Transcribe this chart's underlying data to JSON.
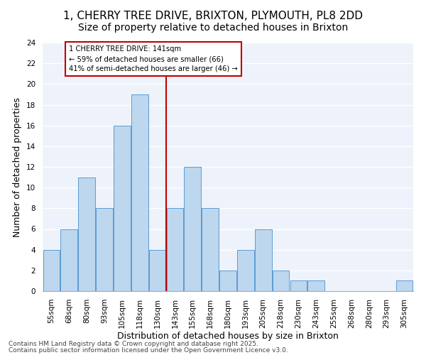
{
  "title1": "1, CHERRY TREE DRIVE, BRIXTON, PLYMOUTH, PL8 2DD",
  "title2": "Size of property relative to detached houses in Brixton",
  "xlabel": "Distribution of detached houses by size in Brixton",
  "ylabel": "Number of detached properties",
  "categories": [
    "55sqm",
    "68sqm",
    "80sqm",
    "93sqm",
    "105sqm",
    "118sqm",
    "130sqm",
    "143sqm",
    "155sqm",
    "168sqm",
    "180sqm",
    "193sqm",
    "205sqm",
    "218sqm",
    "230sqm",
    "243sqm",
    "255sqm",
    "268sqm",
    "280sqm",
    "293sqm",
    "305sqm"
  ],
  "values": [
    4,
    6,
    11,
    8,
    16,
    19,
    4,
    8,
    12,
    8,
    2,
    4,
    6,
    2,
    1,
    1,
    0,
    0,
    0,
    0,
    1
  ],
  "bar_color": "#bdd7ee",
  "bar_edge_color": "#5b9bd5",
  "background_color": "#eef3fb",
  "grid_color": "#ffffff",
  "vline_x": 6.5,
  "vline_color": "#c00000",
  "annotation_text": "1 CHERRY TREE DRIVE: 141sqm\n← 59% of detached houses are smaller (66)\n41% of semi-detached houses are larger (46) →",
  "annotation_box_color": "#c00000",
  "ylim": [
    0,
    24
  ],
  "yticks": [
    0,
    2,
    4,
    6,
    8,
    10,
    12,
    14,
    16,
    18,
    20,
    22,
    24
  ],
  "footer1": "Contains HM Land Registry data © Crown copyright and database right 2025.",
  "footer2": "Contains public sector information licensed under the Open Government Licence v3.0.",
  "title_fontsize": 11,
  "subtitle_fontsize": 10,
  "tick_fontsize": 7.5,
  "ylabel_fontsize": 9,
  "xlabel_fontsize": 9
}
